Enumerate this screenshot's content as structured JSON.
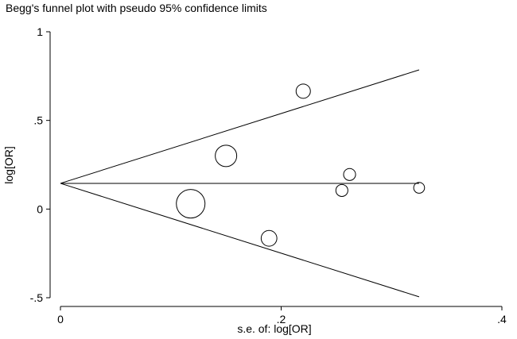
{
  "chart_data": {
    "type": "scatter",
    "title": "Begg's funnel plot with pseudo 95% confidence limits",
    "xlabel": "s.e. of: log[OR]",
    "ylabel": "log[OR]",
    "xlim": [
      0,
      0.4
    ],
    "ylim": [
      -0.5,
      1
    ],
    "x_ticks": [
      0,
      0.2,
      0.4
    ],
    "x_tick_labels": [
      "0",
      ".2",
      ".4"
    ],
    "y_ticks": [
      -0.5,
      0,
      0.5,
      1
    ],
    "y_tick_labels": [
      "-.5",
      "0",
      ".5",
      "1"
    ],
    "grid": false,
    "pooled_estimate": 0.145,
    "confidence_limits": {
      "x": [
        0,
        0.325
      ],
      "upper": [
        0.145,
        0.785
      ],
      "lower": [
        0.145,
        -0.495
      ]
    },
    "points": [
      {
        "x": 0.118,
        "y": 0.03,
        "size": 1.0
      },
      {
        "x": 0.15,
        "y": 0.3,
        "size": 0.75
      },
      {
        "x": 0.189,
        "y": -0.165,
        "size": 0.55
      },
      {
        "x": 0.22,
        "y": 0.665,
        "size": 0.5
      },
      {
        "x": 0.255,
        "y": 0.105,
        "size": 0.42
      },
      {
        "x": 0.262,
        "y": 0.195,
        "size": 0.42
      },
      {
        "x": 0.325,
        "y": 0.12,
        "size": 0.38
      }
    ]
  }
}
